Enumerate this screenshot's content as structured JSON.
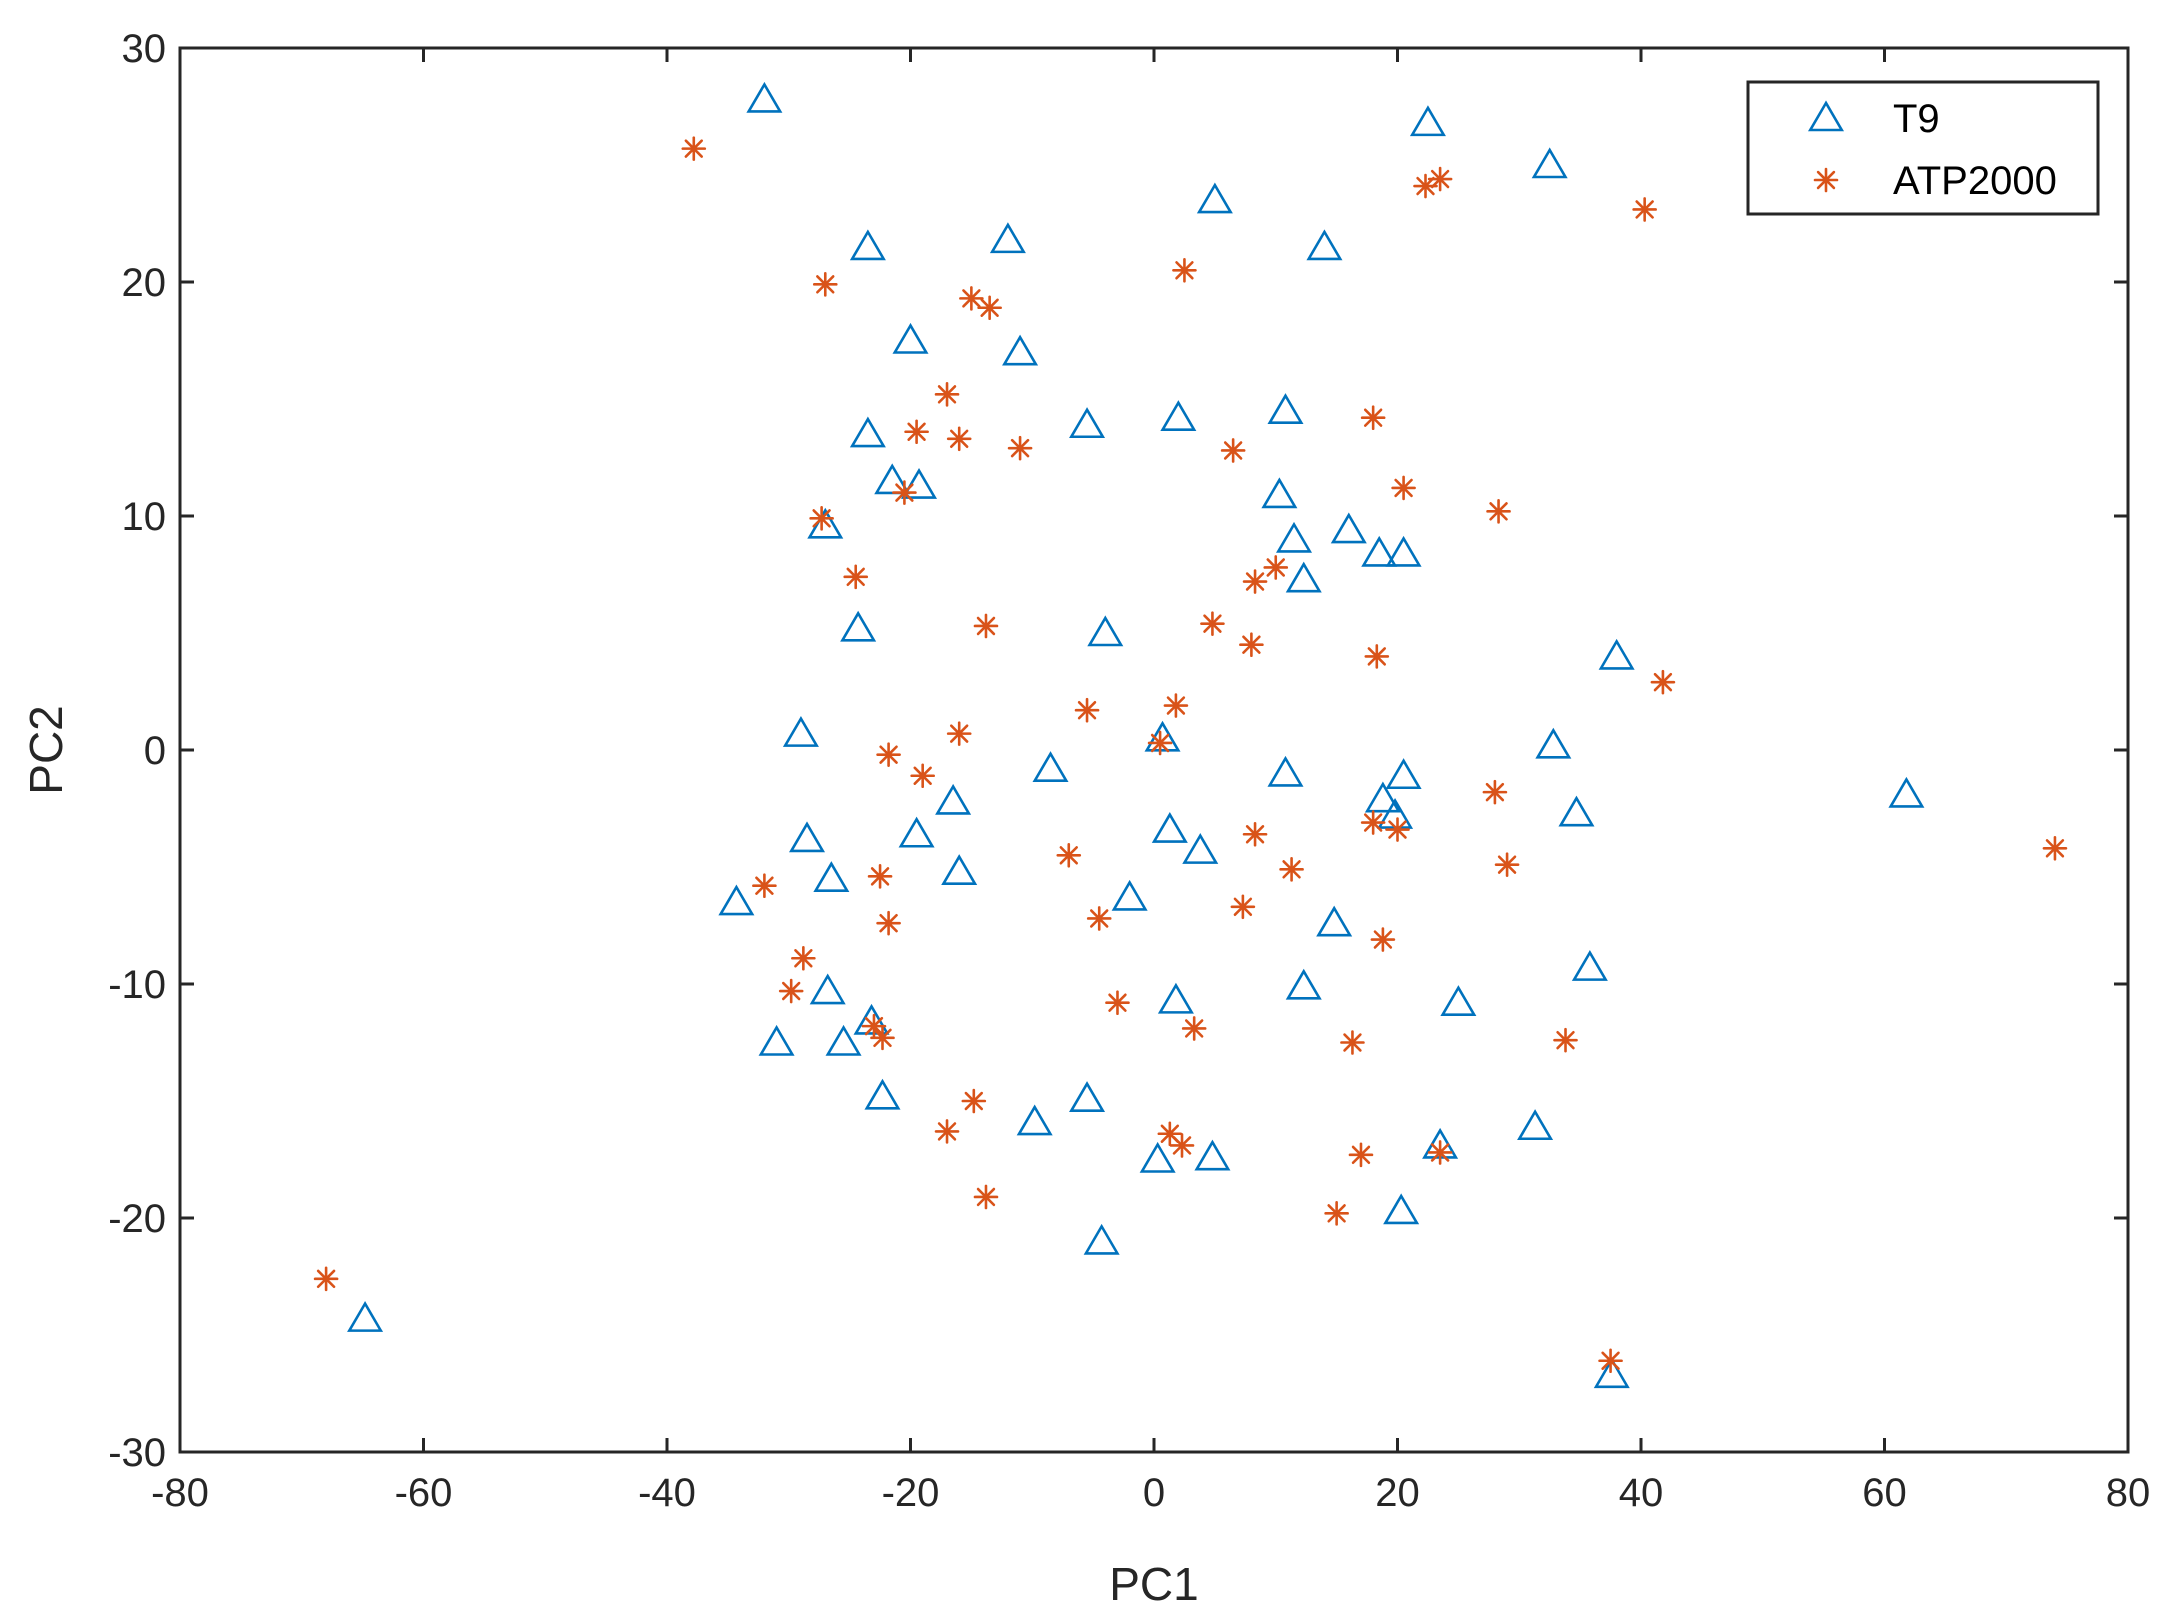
{
  "chart_data": {
    "type": "scatter",
    "xlabel": "PC1",
    "ylabel": "PC2",
    "xlim": [
      -80,
      80
    ],
    "ylim": [
      -30,
      30
    ],
    "xticks": [
      -80,
      -60,
      -40,
      -20,
      0,
      20,
      40,
      60,
      80
    ],
    "yticks": [
      -30,
      -20,
      -10,
      0,
      10,
      20,
      30
    ],
    "grid": false,
    "legend": {
      "placement": "top-right"
    },
    "series": [
      {
        "name": "T9",
        "marker": "triangle",
        "color": "#0072BD",
        "points": [
          [
            -32,
            27.8
          ],
          [
            22.5,
            26.8
          ],
          [
            32.5,
            25
          ],
          [
            5,
            23.5
          ],
          [
            -23.5,
            21.5
          ],
          [
            -12,
            21.8
          ],
          [
            14,
            21.5
          ],
          [
            -20,
            17.5
          ],
          [
            -11,
            17
          ],
          [
            -23.5,
            13.5
          ],
          [
            -5.5,
            13.9
          ],
          [
            2,
            14.2
          ],
          [
            10.8,
            14.5
          ],
          [
            -21.5,
            11.5
          ],
          [
            -19.3,
            11.3
          ],
          [
            10.3,
            10.9
          ],
          [
            11.5,
            9
          ],
          [
            16,
            9.4
          ],
          [
            18.5,
            8.4
          ],
          [
            20.5,
            8.4
          ],
          [
            -27,
            9.6
          ],
          [
            12.3,
            7.3
          ],
          [
            -24.3,
            5.2
          ],
          [
            -4,
            5
          ],
          [
            38,
            4
          ],
          [
            -29,
            0.7
          ],
          [
            0.7,
            0.5
          ],
          [
            32.8,
            0.2
          ],
          [
            -8.5,
            -0.8
          ],
          [
            10.8,
            -1
          ],
          [
            20.5,
            -1.1
          ],
          [
            61.8,
            -1.9
          ],
          [
            -16.5,
            -2.2
          ],
          [
            18.8,
            -2.1
          ],
          [
            19.8,
            -2.8
          ],
          [
            34.7,
            -2.7
          ],
          [
            -28.5,
            -3.8
          ],
          [
            -19.5,
            -3.6
          ],
          [
            1.3,
            -3.4
          ],
          [
            3.8,
            -4.3
          ],
          [
            -26.5,
            -5.5
          ],
          [
            -16,
            -5.2
          ],
          [
            -34.3,
            -6.5
          ],
          [
            -2,
            -6.3
          ],
          [
            14.8,
            -7.4
          ],
          [
            35.8,
            -9.3
          ],
          [
            -26.8,
            -10.3
          ],
          [
            12.3,
            -10.1
          ],
          [
            1.8,
            -10.7
          ],
          [
            25,
            -10.8
          ],
          [
            -31,
            -12.5
          ],
          [
            -25.5,
            -12.5
          ],
          [
            -23.2,
            -11.6
          ],
          [
            -22.3,
            -14.8
          ],
          [
            -5.5,
            -14.9
          ],
          [
            -9.8,
            -15.9
          ],
          [
            31.3,
            -16.1
          ],
          [
            23.5,
            -16.9
          ],
          [
            0.3,
            -17.5
          ],
          [
            4.8,
            -17.4
          ],
          [
            20.3,
            -19.7
          ],
          [
            -4.3,
            -21
          ],
          [
            -64.8,
            -24.3
          ],
          [
            37.6,
            -26.7
          ]
        ]
      },
      {
        "name": "ATP2000",
        "marker": "asterisk",
        "color": "#D95319",
        "points": [
          [
            -37.8,
            25.7
          ],
          [
            23.5,
            24.4
          ],
          [
            22.3,
            24.1
          ],
          [
            40.3,
            23.1
          ],
          [
            2.5,
            20.5
          ],
          [
            -27,
            19.9
          ],
          [
            -15,
            19.3
          ],
          [
            -13.5,
            18.9
          ],
          [
            -17,
            15.2
          ],
          [
            18,
            14.2
          ],
          [
            -19.5,
            13.6
          ],
          [
            -16,
            13.3
          ],
          [
            -11,
            12.9
          ],
          [
            6.5,
            12.8
          ],
          [
            20.5,
            11.2
          ],
          [
            -20.5,
            11
          ],
          [
            28.3,
            10.2
          ],
          [
            -27.3,
            9.9
          ],
          [
            -24.5,
            7.4
          ],
          [
            10,
            7.8
          ],
          [
            8.3,
            7.2
          ],
          [
            -13.8,
            5.3
          ],
          [
            4.8,
            5.4
          ],
          [
            8,
            4.5
          ],
          [
            18.3,
            4
          ],
          [
            41.8,
            2.9
          ],
          [
            1.8,
            1.9
          ],
          [
            -5.5,
            1.7
          ],
          [
            -16,
            0.7
          ],
          [
            0.5,
            0.3
          ],
          [
            -21.8,
            -0.2
          ],
          [
            -19,
            -1.1
          ],
          [
            28,
            -1.8
          ],
          [
            18,
            -3.1
          ],
          [
            20,
            -3.4
          ],
          [
            8.3,
            -3.6
          ],
          [
            -32,
            -5.8
          ],
          [
            -22.5,
            -5.4
          ],
          [
            -7,
            -4.5
          ],
          [
            11.3,
            -5.1
          ],
          [
            29,
            -4.9
          ],
          [
            74,
            -4.2
          ],
          [
            -4.5,
            -7.2
          ],
          [
            7.3,
            -6.7
          ],
          [
            -21.8,
            -7.4
          ],
          [
            18.8,
            -8.1
          ],
          [
            -28.8,
            -8.9
          ],
          [
            -29.8,
            -10.3
          ],
          [
            -3,
            -10.8
          ],
          [
            3.3,
            -11.9
          ],
          [
            -23,
            -11.8
          ],
          [
            -22.3,
            -12.3
          ],
          [
            16.3,
            -12.5
          ],
          [
            33.8,
            -12.4
          ],
          [
            -14.8,
            -15
          ],
          [
            -17,
            -16.3
          ],
          [
            1.3,
            -16.4
          ],
          [
            2.3,
            -16.9
          ],
          [
            17,
            -17.3
          ],
          [
            23.5,
            -17.2
          ],
          [
            -13.8,
            -19.1
          ],
          [
            15,
            -19.8
          ],
          [
            -68,
            -22.6
          ],
          [
            37.5,
            -26.1
          ]
        ]
      }
    ]
  }
}
